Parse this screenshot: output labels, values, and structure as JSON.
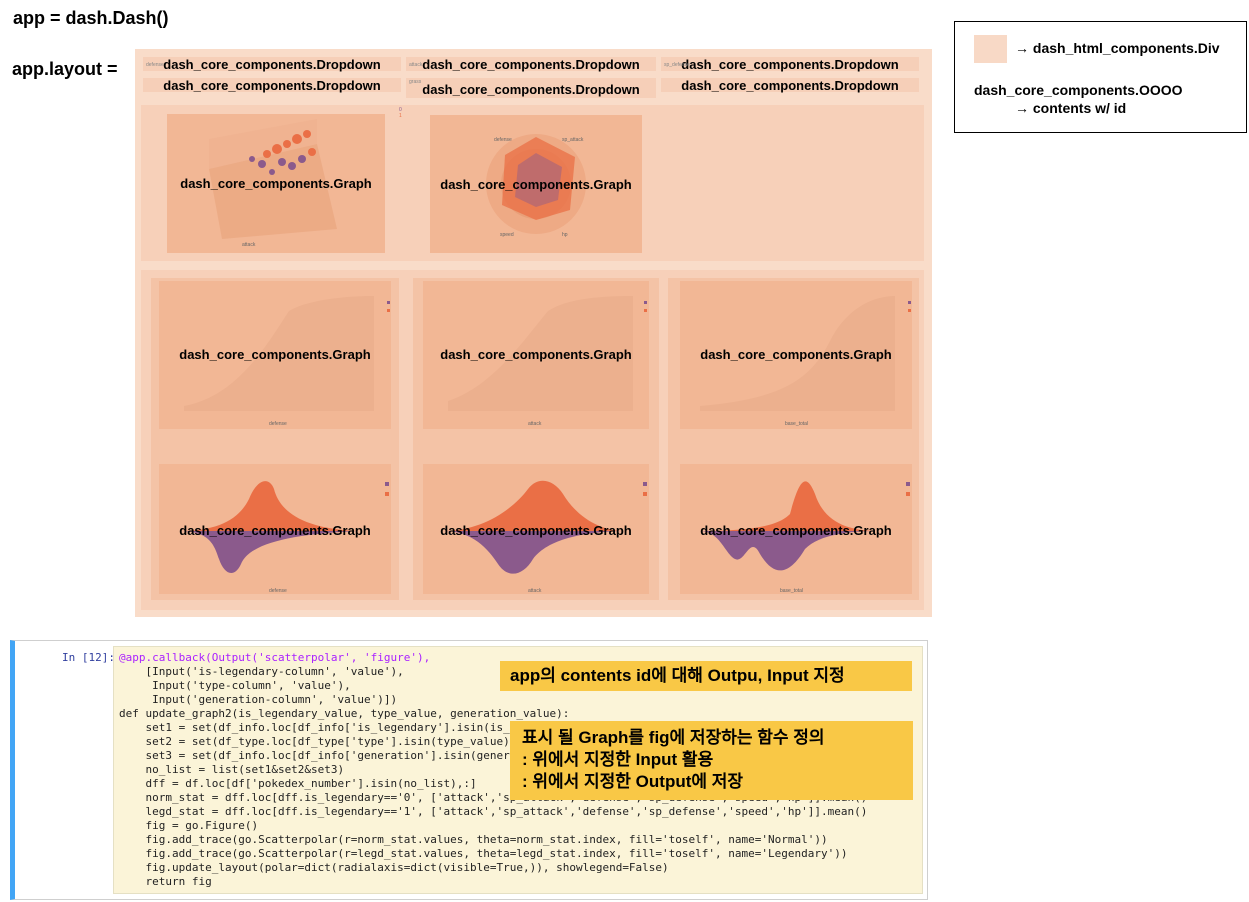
{
  "header": {
    "app_line": "app = dash.Dash()",
    "layout_label": "app.layout ="
  },
  "legend": {
    "div_label": "→ dash_html_components.Div",
    "component_label": "dash_core_components.OOOO",
    "component_desc": "→ contents w/ id"
  },
  "dropdowns": {
    "label": "dash_core_components.Dropdown",
    "row1_small": [
      "defense",
      "attack",
      "sp_defense"
    ],
    "row2_small": [
      "grass",
      "fire",
      "water",
      "bug",
      "normal",
      "poison",
      "electric",
      "ground",
      "fairy"
    ]
  },
  "graph_label": "dash_core_components.Graph",
  "graph_axes": {
    "scatter3d_x": "attack",
    "polar_axes": [
      "defense",
      "sp_attack",
      "hp",
      "speed"
    ],
    "hist_x": [
      "defense",
      "attack",
      "base_total"
    ],
    "violin_x": [
      "defense",
      "attack",
      "base_total"
    ],
    "legend_items": [
      "0",
      "1"
    ],
    "ticks": [
      "0",
      "20",
      "40",
      "60",
      "80",
      "100"
    ]
  },
  "colors": {
    "div_fill": "#f8d9c6",
    "graph_fill": "#f2b795",
    "accent_blue": "#42a5f5",
    "callout_fill": "#f9c846",
    "series_purple": "#8b5a8c",
    "series_orange": "#ea6f46"
  },
  "code_cell": {
    "prompt": "In [12]:",
    "lines": [
      "@app.callback(Output('scatterpolar', 'figure'),",
      "    [Input('is-legendary-column', 'value'),",
      "     Input('type-column', 'value'),",
      "     Input('generation-column', 'value')])",
      "def update_graph2(is_legendary_value, type_value, generation_value):",
      "    set1 = set(df_info.loc[df_info['is_legendary'].isin(is_legendary_value),'pokedex_number'])",
      "    set2 = set(df_type.loc[df_type['type'].isin(type_value),'pokedex_number'])",
      "    set3 = set(df_info.loc[df_info['generation'].isin(generation_value),'pokedex_number'])",
      "    no_list = list(set1&set2&set3)",
      "    dff = df.loc[df['pokedex_number'].isin(no_list),:]",
      "    norm_stat = dff.loc[dff.is_legendary=='0', ['attack','sp_attack','defense','sp_defense','speed','hp']].mean()",
      "    legd_stat = dff.loc[dff.is_legendary=='1', ['attack','sp_attack','defense','sp_defense','speed','hp']].mean()",
      "    fig = go.Figure()",
      "    fig.add_trace(go.Scatterpolar(r=norm_stat.values, theta=norm_stat.index, fill='toself', name='Normal'))",
      "    fig.add_trace(go.Scatterpolar(r=legd_stat.values, theta=legd_stat.index, fill='toself', name='Legendary'))",
      "    fig.update_layout(polar=dict(radialaxis=dict(visible=True,)), showlegend=False)",
      "    return fig"
    ]
  },
  "callouts": {
    "first": "app의 contents id에 대해 Outpu, Input 지정",
    "second_title": "표시 될 Graph를 fig에 저장하는 함수 정의",
    "second_line1": ": 위에서 지정한 Input 활용",
    "second_line2": ": 위에서 지정한 Output에 저장"
  }
}
